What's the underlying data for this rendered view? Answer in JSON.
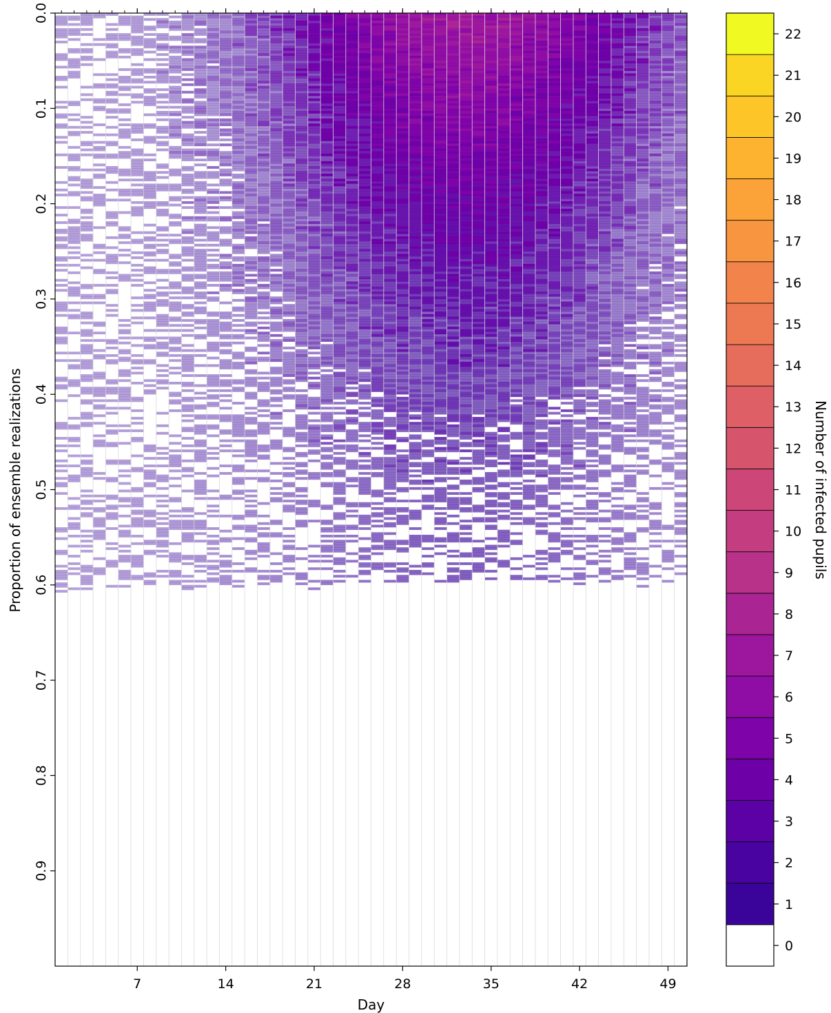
{
  "chart_data": [
    {
      "type": "heatmap",
      "xlabel": "Day",
      "ylabel": "Proportion of ensemble realizations",
      "x_ticks": [
        7,
        14,
        21,
        28,
        35,
        42,
        49
      ],
      "x_tick_labels": [
        "7",
        "14",
        "21",
        "28",
        "35",
        "42",
        "49"
      ],
      "xlim": [
        1,
        50
      ],
      "y_ticks": [
        0.0,
        0.1,
        0.2,
        0.3,
        0.4,
        0.5,
        0.6,
        0.7,
        0.8,
        0.9
      ],
      "y_tick_labels": [
        "0.0",
        "0.1",
        "0.2",
        "0.3",
        "0.4",
        "0.5",
        "0.6",
        "0.7",
        "0.8",
        "0.9"
      ],
      "ylim": [
        1.0,
        0.0
      ],
      "y_inverted": true,
      "colorscale": "plasma",
      "nonzero_extent_by_day": [
        0.61,
        0.605,
        0.605,
        0.6,
        0.6,
        0.6,
        0.6,
        0.6,
        0.6,
        0.6,
        0.6,
        0.6,
        0.6,
        0.6,
        0.6,
        0.6,
        0.6,
        0.6,
        0.6,
        0.6,
        0.6,
        0.6,
        0.6,
        0.6,
        0.6,
        0.6,
        0.6,
        0.6,
        0.6,
        0.6,
        0.6,
        0.6,
        0.6,
        0.6,
        0.6,
        0.6,
        0.6,
        0.6,
        0.6,
        0.6,
        0.6,
        0.6,
        0.6,
        0.6,
        0.6,
        0.6,
        0.6,
        0.6,
        0.6,
        0.6,
        0.615
      ],
      "peak_day": 33,
      "peak_count_top_of_ensemble": 7
    },
    {
      "type": "colorbar",
      "label": "Number of infected pupils",
      "levels": [
        0,
        1,
        2,
        3,
        4,
        5,
        6,
        7,
        8,
        9,
        10,
        11,
        12,
        13,
        14,
        15,
        16,
        17,
        18,
        19,
        20,
        21,
        22
      ],
      "tick_labels": [
        "0",
        "1",
        "2",
        "3",
        "4",
        "5",
        "6",
        "7",
        "8",
        "9",
        "10",
        "11",
        "12",
        "13",
        "14",
        "15",
        "16",
        "17",
        "18",
        "19",
        "20",
        "21",
        "22"
      ],
      "colors": [
        "#ffffff",
        "#3a049a",
        "#4903a0",
        "#5c01a6",
        "#6e00a8",
        "#7e03a8",
        "#8f0da4",
        "#9c179e",
        "#ab2494",
        "#b83289",
        "#c33d80",
        "#cc4778",
        "#d6556d",
        "#de5f65",
        "#e66c5c",
        "#ed7953",
        "#f2844b",
        "#f89540",
        "#fba238",
        "#fdb32f",
        "#fdc527",
        "#fbd524",
        "#f0f921"
      ]
    }
  ]
}
